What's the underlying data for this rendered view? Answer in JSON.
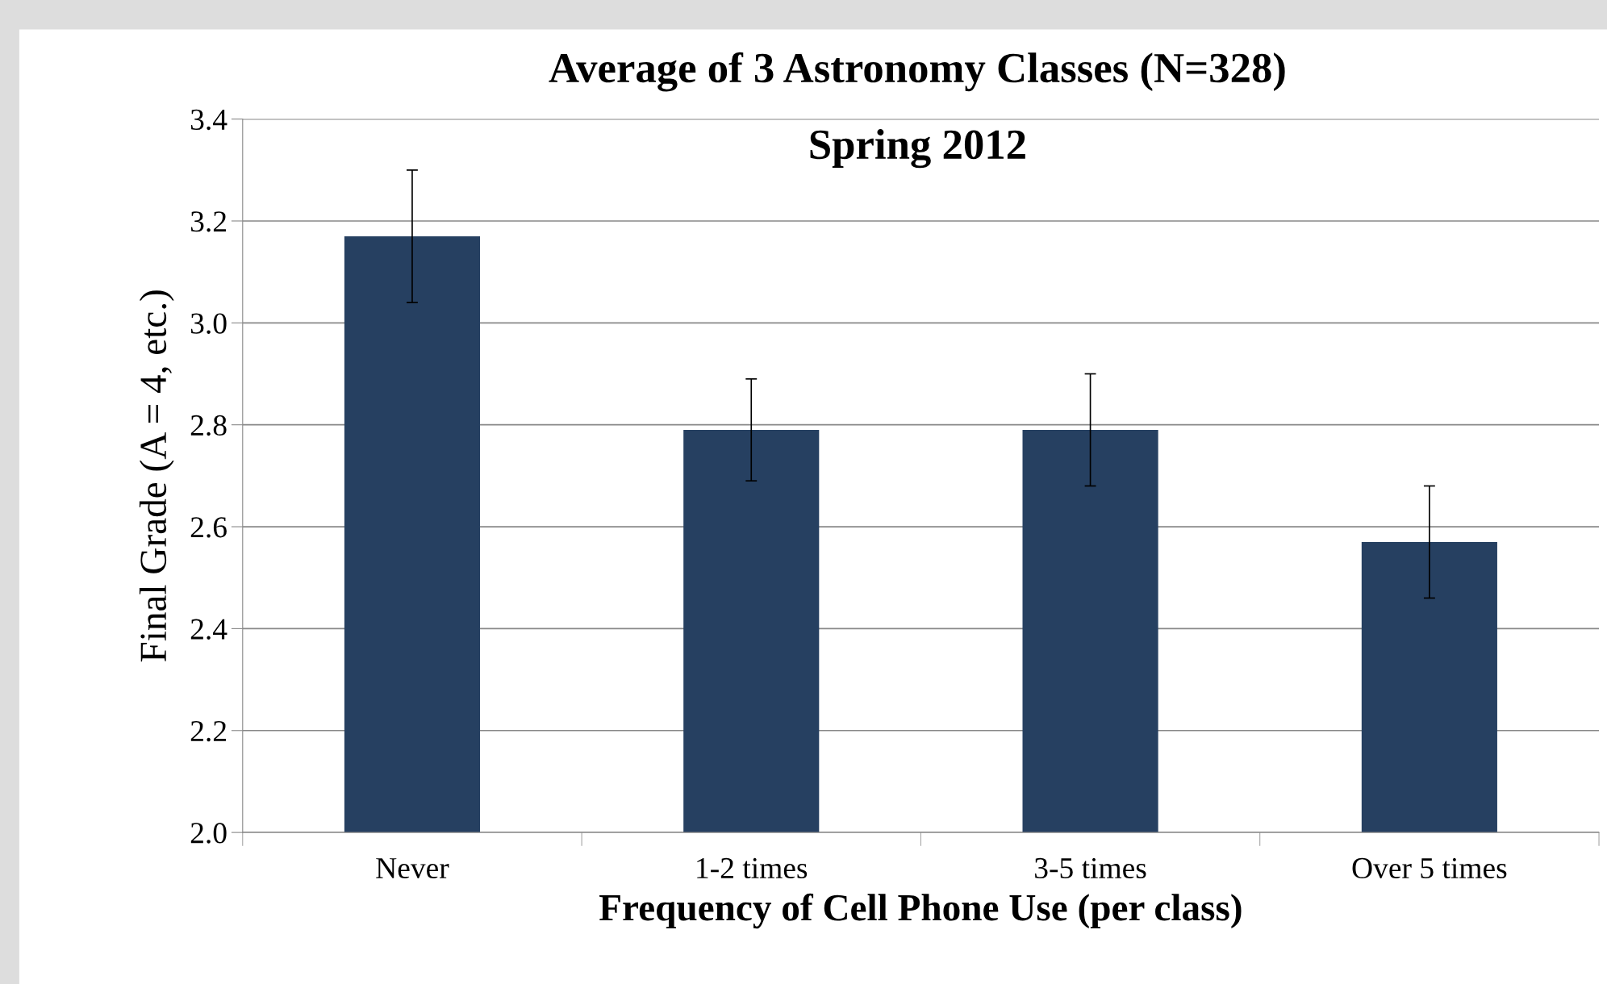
{
  "chart_data": {
    "type": "bar",
    "title": "Average of 3 Astronomy Classes (N=328)",
    "subtitle": "Spring 2012",
    "xlabel": "Frequency of Cell Phone Use (per class)",
    "ylabel": "Final Grade (A = 4, etc.)",
    "categories": [
      "Never",
      "1-2 times",
      "3-5 times",
      "Over 5 times"
    ],
    "values": [
      3.17,
      2.79,
      2.79,
      2.57
    ],
    "errors": [
      0.13,
      0.1,
      0.11,
      0.11
    ],
    "color": "#264061",
    "ylim": [
      2.0,
      3.4
    ],
    "yticks": [
      {
        "value": 2.0,
        "label": "2.0"
      },
      {
        "value": 2.2,
        "label": "2.2"
      },
      {
        "value": 2.4,
        "label": "2.4"
      },
      {
        "value": 2.6,
        "label": "2.6"
      },
      {
        "value": 2.8,
        "label": "2.8"
      },
      {
        "value": 3.0,
        "label": "3.0"
      },
      {
        "value": 3.2,
        "label": "3.2"
      },
      {
        "value": 3.4,
        "label": "3.4"
      }
    ],
    "grid": "y"
  }
}
